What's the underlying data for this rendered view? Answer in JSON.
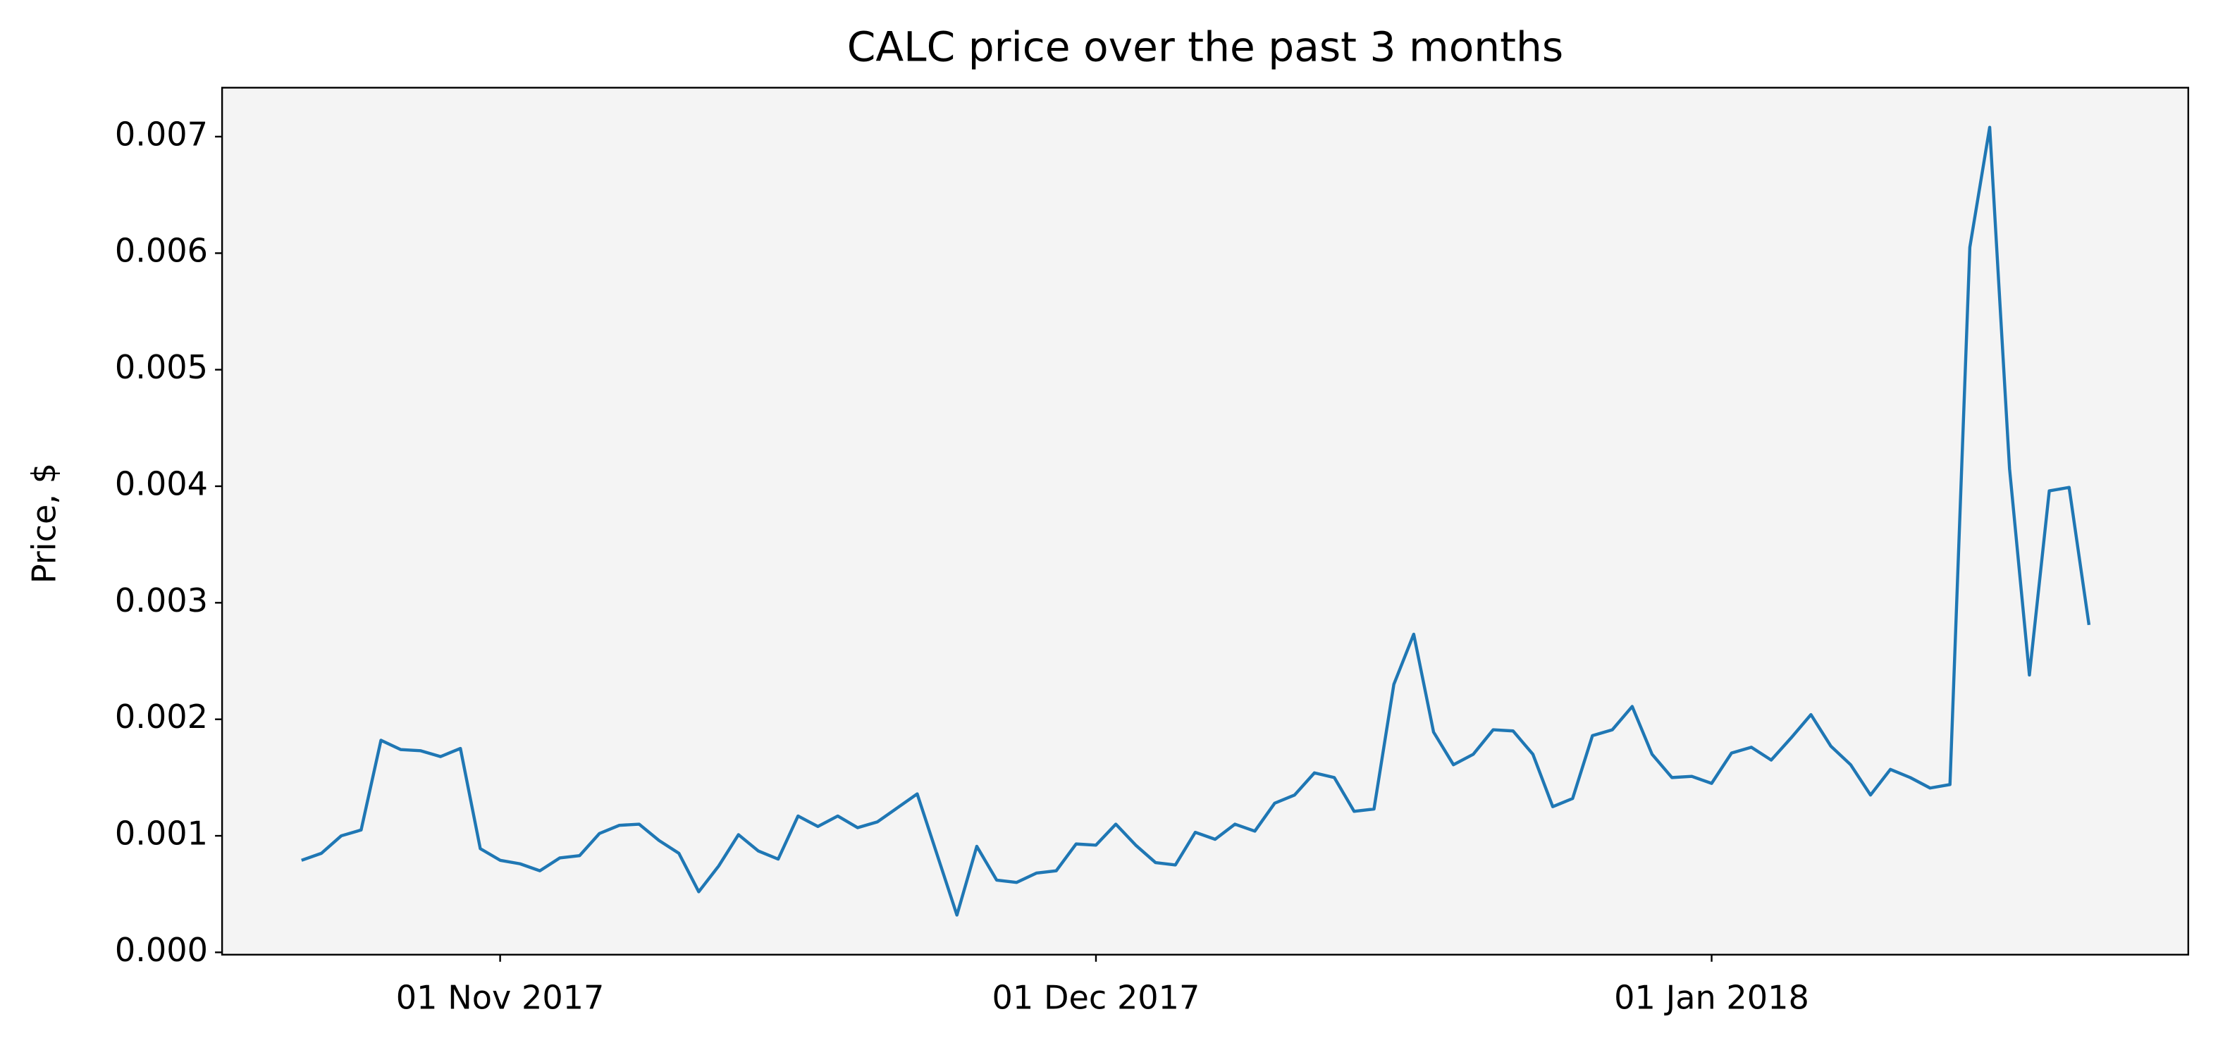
{
  "chart_data": {
    "type": "line",
    "title": "CALC price over the past 3 months",
    "ylabel": "Price, $",
    "color": "#1f77b4",
    "x": [
      "2017-10-22",
      "2017-10-23",
      "2017-10-24",
      "2017-10-25",
      "2017-10-26",
      "2017-10-27",
      "2017-10-28",
      "2017-10-29",
      "2017-10-30",
      "2017-10-31",
      "2017-11-01",
      "2017-11-02",
      "2017-11-03",
      "2017-11-04",
      "2017-11-05",
      "2017-11-06",
      "2017-11-07",
      "2017-11-08",
      "2017-11-09",
      "2017-11-10",
      "2017-11-11",
      "2017-11-12",
      "2017-11-13",
      "2017-11-14",
      "2017-11-15",
      "2017-11-16",
      "2017-11-17",
      "2017-11-18",
      "2017-11-19",
      "2017-11-20",
      "2017-11-21",
      "2017-11-22",
      "2017-11-23",
      "2017-11-24",
      "2017-11-25",
      "2017-11-26",
      "2017-11-27",
      "2017-11-28",
      "2017-11-29",
      "2017-11-30",
      "2017-12-01",
      "2017-12-02",
      "2017-12-03",
      "2017-12-04",
      "2017-12-05",
      "2017-12-06",
      "2017-12-07",
      "2017-12-08",
      "2017-12-09",
      "2017-12-10",
      "2017-12-11",
      "2017-12-12",
      "2017-12-13",
      "2017-12-14",
      "2017-12-15",
      "2017-12-16",
      "2017-12-17",
      "2017-12-18",
      "2017-12-19",
      "2017-12-20",
      "2017-12-21",
      "2017-12-22",
      "2017-12-23",
      "2017-12-24",
      "2017-12-25",
      "2017-12-26",
      "2017-12-27",
      "2017-12-28",
      "2017-12-29",
      "2017-12-30",
      "2017-12-31",
      "2018-01-01",
      "2018-01-02",
      "2018-01-03",
      "2018-01-04",
      "2018-01-05",
      "2018-01-06",
      "2018-01-07",
      "2018-01-08",
      "2018-01-09",
      "2018-01-10",
      "2018-01-11",
      "2018-01-12",
      "2018-01-13",
      "2018-01-14",
      "2018-01-15",
      "2018-01-16",
      "2018-01-17",
      "2018-01-18",
      "2018-01-19",
      "2018-01-20"
    ],
    "values": [
      0.00079,
      0.00085,
      0.001,
      0.00105,
      0.00182,
      0.00174,
      0.00173,
      0.00168,
      0.00175,
      0.00089,
      0.00079,
      0.00076,
      0.0007,
      0.00081,
      0.00083,
      0.00102,
      0.00109,
      0.0011,
      0.00096,
      0.00085,
      0.00052,
      0.00074,
      0.00101,
      0.00087,
      0.0008,
      0.00117,
      0.00108,
      0.00117,
      0.00107,
      0.00112,
      0.00124,
      0.00136,
      0.00084,
      0.00032,
      0.00091,
      0.00062,
      0.0006,
      0.00068,
      0.0007,
      0.00093,
      0.00092,
      0.0011,
      0.00092,
      0.00077,
      0.00075,
      0.00103,
      0.00097,
      0.0011,
      0.00104,
      0.00128,
      0.00135,
      0.00154,
      0.0015,
      0.00121,
      0.00123,
      0.0023,
      0.00273,
      0.00189,
      0.00161,
      0.0017,
      0.00191,
      0.0019,
      0.0017,
      0.00125,
      0.00132,
      0.00186,
      0.00191,
      0.00211,
      0.0017,
      0.0015,
      0.00151,
      0.00145,
      0.00171,
      0.00176,
      0.00165,
      0.00184,
      0.00204,
      0.00177,
      0.00161,
      0.00135,
      0.00157,
      0.0015,
      0.00141,
      0.00144,
      0.00605,
      0.00708,
      0.00415,
      0.00238,
      0.00396,
      0.00399,
      0.00281
    ],
    "xlim": [
      "2017-10-18",
      "2018-01-25"
    ],
    "xticks": [
      {
        "value": "2017-11-01",
        "label": "01 Nov 2017"
      },
      {
        "value": "2017-12-01",
        "label": "01 Dec 2017"
      },
      {
        "value": "2018-01-01",
        "label": "01 Jan 2018"
      }
    ],
    "ylim": [
      -2e-05,
      0.00742
    ],
    "yticks": [
      {
        "value": 0,
        "label": "0.000"
      },
      0.001,
      0.002,
      0.003,
      0.004,
      0.005,
      0.006,
      0.007
    ],
    "grid": false
  }
}
